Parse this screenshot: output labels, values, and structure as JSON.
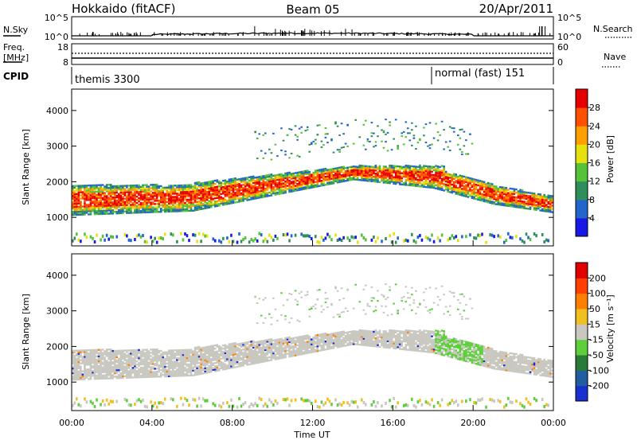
{
  "header": {
    "station": "Hokkaido (fitACF)",
    "beam": "Beam 05",
    "date": "20/Apr/2011"
  },
  "top_panels": {
    "noise_left_label": "N.Sky",
    "noise_right_label": "N.Search",
    "noise_ticks_left": [
      "10^5",
      "10^0"
    ],
    "noise_ticks_right": [
      "10^5",
      "10^0"
    ],
    "freq_label_top": "Freq.",
    "freq_label_bottom": "[MHz]",
    "freq_ticks": [
      "18",
      "8"
    ],
    "nave_label": "Nave",
    "nave_ticks": [
      "60",
      "0"
    ],
    "cpid_label": "CPID",
    "cpid_mode_1": "themis 3300",
    "cpid_mode_2": "normal (fast) 151"
  },
  "chart_data": [
    {
      "type": "heatmap",
      "panel": "power",
      "ylabel": "Slant Range [km]",
      "xlabel": "",
      "ylim": [
        200,
        4600
      ],
      "xlim_hours": [
        0,
        24
      ],
      "y_ticks": [
        "1000",
        "2000",
        "3000",
        "4000"
      ],
      "colorbar_label": "Power [dB]",
      "colorbar_ticks": [
        "4",
        "8",
        "12",
        "16",
        "20",
        "24",
        "28"
      ],
      "colorbar_colors": [
        "#1818e6",
        "#2266cc",
        "#2f8f5a",
        "#55c23a",
        "#e6e010",
        "#ff9f00",
        "#ff5000",
        "#e60000"
      ]
    },
    {
      "type": "heatmap",
      "panel": "velocity",
      "ylabel": "Slant Range [km]",
      "xlabel": "Time UT",
      "ylim": [
        200,
        4600
      ],
      "xlim_hours": [
        0,
        24
      ],
      "y_ticks": [
        "1000",
        "2000",
        "3000",
        "4000"
      ],
      "x_ticks": [
        "00:00",
        "04:00",
        "08:00",
        "12:00",
        "16:00",
        "20:00",
        "00:00"
      ],
      "colorbar_label": "Velocity [m s⁻¹]",
      "colorbar_ticks": [
        "200",
        "100",
        "50",
        "15",
        "-15",
        "-50",
        "-100",
        "-200"
      ],
      "colorbar_colors": [
        "#1a2fd0",
        "#1f5fa0",
        "#2c7a3a",
        "#5ccf3a",
        "#c8c8c0",
        "#f0c020",
        "#ff8000",
        "#ff4000",
        "#e00000"
      ]
    }
  ]
}
